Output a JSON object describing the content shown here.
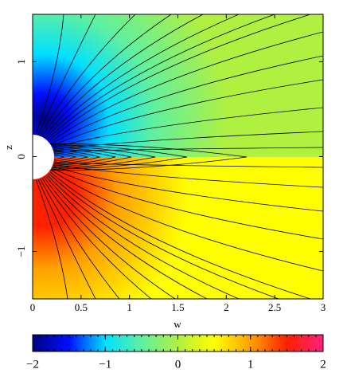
{
  "chart_data": {
    "type": "contour",
    "xlabel": "w",
    "ylabel": "z",
    "xlim": [
      0,
      3
    ],
    "ylim": [
      -1.5,
      1.5
    ],
    "xticks": [
      0,
      0.5,
      1,
      1.5,
      2,
      2.5,
      3
    ],
    "yticks": [
      {
        "value": -1,
        "label": "−1"
      },
      0,
      1
    ],
    "colormap": [
      "#00007f",
      "#0010ff",
      "#00e0ff",
      "#60f0a0",
      "#b0f040",
      "#ffff00",
      "#ffa000",
      "#ff2000",
      "#ff2080"
    ],
    "colorbar": {
      "lim": [
        -2,
        2
      ],
      "ticks": [
        {
          "value": -2,
          "label": "−2"
        },
        {
          "value": -1,
          "label": "−1"
        },
        0,
        1,
        2
      ]
    }
  }
}
